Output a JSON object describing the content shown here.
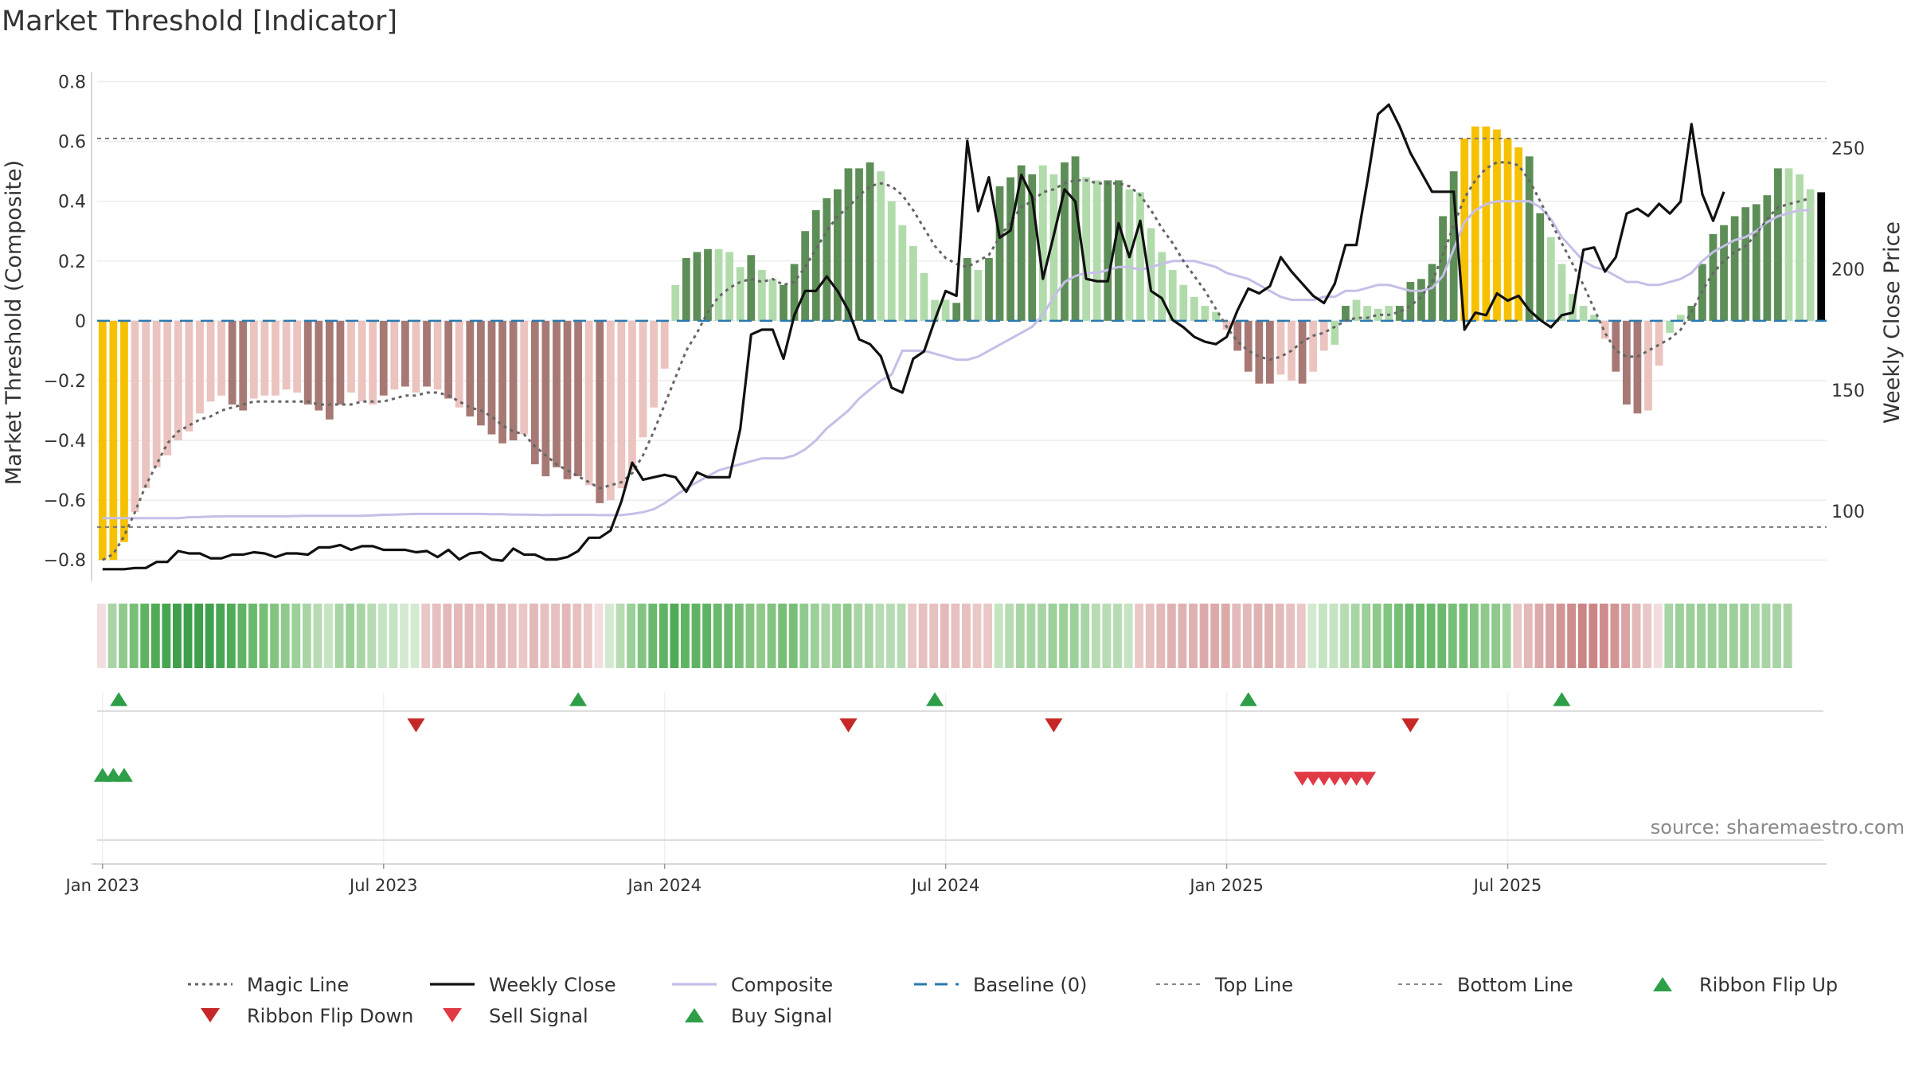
{
  "chart_data": {
    "type": "bar",
    "title": "Market Threshold [Indicator]",
    "ylabel": "Market Threshold (Composite)",
    "y2label": "Weekly Close Price",
    "ylim": [
      -0.85,
      0.82
    ],
    "y2lim": [
      70,
      280
    ],
    "yticks": [
      {
        "v": 0.8,
        "label": "0.8"
      },
      {
        "v": 0.6,
        "label": "0.6"
      },
      {
        "v": 0.4,
        "label": "0.4"
      },
      {
        "v": 0.2,
        "label": "0.2"
      },
      {
        "v": 0,
        "label": "0"
      },
      {
        "v": -0.2,
        "label": "−0.2"
      },
      {
        "v": -0.4,
        "label": "−0.4"
      },
      {
        "v": -0.6,
        "label": "−0.6"
      },
      {
        "v": -0.8,
        "label": "−0.8"
      }
    ],
    "y2ticks": [
      {
        "v": 250,
        "label": "250"
      },
      {
        "v": 200,
        "label": "200"
      },
      {
        "v": 150,
        "label": "150"
      },
      {
        "v": 100,
        "label": "100"
      }
    ],
    "xticks": [
      {
        "week": 1,
        "label": "Jan 2023"
      },
      {
        "week": 27,
        "label": "Jul 2023"
      },
      {
        "week": 53,
        "label": "Jan 2024"
      },
      {
        "week": 79,
        "label": "Jul 2024"
      },
      {
        "week": 105,
        "label": "Jan 2025"
      },
      {
        "week": 131,
        "label": "Jul 2025"
      }
    ],
    "top_line": 0.61,
    "bottom_line": -0.69,
    "baseline": 0,
    "composite_bars": [
      -0.8,
      -0.8,
      -0.74,
      -0.64,
      -0.56,
      -0.49,
      -0.45,
      -0.4,
      -0.37,
      -0.31,
      -0.27,
      -0.25,
      -0.28,
      -0.3,
      -0.26,
      -0.25,
      -0.25,
      -0.23,
      -0.24,
      -0.28,
      -0.3,
      -0.33,
      -0.28,
      -0.24,
      -0.27,
      -0.28,
      -0.25,
      -0.23,
      -0.22,
      -0.24,
      -0.22,
      -0.23,
      -0.26,
      -0.29,
      -0.32,
      -0.35,
      -0.38,
      -0.41,
      -0.4,
      -0.38,
      -0.48,
      -0.52,
      -0.49,
      -0.53,
      -0.52,
      -0.55,
      -0.61,
      -0.6,
      -0.56,
      -0.5,
      -0.39,
      -0.29,
      -0.16,
      0.12,
      0.21,
      0.23,
      0.24,
      0.24,
      0.23,
      0.18,
      0.22,
      0.17,
      0.14,
      0.12,
      0.19,
      0.3,
      0.37,
      0.41,
      0.44,
      0.51,
      0.51,
      0.53,
      0.5,
      0.4,
      0.32,
      0.25,
      0.16,
      0.07,
      0.07,
      0.06,
      0.21,
      0.17,
      0.21,
      0.45,
      0.48,
      0.52,
      0.49,
      0.52,
      0.49,
      0.53,
      0.55,
      0.48,
      0.47,
      0.47,
      0.47,
      0.44,
      0.43,
      0.31,
      0.23,
      0.17,
      0.12,
      0.08,
      0.05,
      0.03,
      -0.03,
      -0.1,
      -0.17,
      -0.21,
      -0.21,
      -0.18,
      -0.2,
      -0.21,
      -0.17,
      -0.1,
      -0.08,
      0.05,
      0.07,
      0.05,
      0.04,
      0.05,
      0.05,
      0.13,
      0.14,
      0.19,
      0.35,
      0.5,
      0.61,
      0.65,
      0.65,
      0.64,
      0.61,
      0.58,
      0.55,
      0.36,
      0.28,
      0.19,
      0.09,
      0.05,
      0.02,
      -0.06,
      -0.17,
      -0.28,
      -0.31,
      -0.3,
      -0.15,
      -0.04,
      0.02,
      0.05,
      0.19,
      0.29,
      0.32,
      0.35,
      0.38,
      0.39,
      0.42,
      0.51,
      0.51,
      0.49,
      0.44,
      0.43
    ],
    "bar_colors": [
      "#f5c100",
      "#f5c100",
      "#f5c100",
      "#ebc3bf",
      "#ebc3bf",
      "#ebc3bf",
      "#ebc3bf",
      "#ebc3bf",
      "#ebc3bf",
      "#ebc3bf",
      "#ebc3bf",
      "#ebc3bf",
      "#a77975",
      "#a77975",
      "#ebc3bf",
      "#ebc3bf",
      "#ebc3bf",
      "#ebc3bf",
      "#ebc3bf",
      "#a77975",
      "#a77975",
      "#a77975",
      "#a77975",
      "#ebc3bf",
      "#ebc3bf",
      "#ebc3bf",
      "#a77975",
      "#ebc3bf",
      "#a77975",
      "#ebc3bf",
      "#a77975",
      "#ebc3bf",
      "#a77975",
      "#ebc3bf",
      "#a77975",
      "#a77975",
      "#a77975",
      "#a77975",
      "#a77975",
      "#ebc3bf",
      "#a77975",
      "#a77975",
      "#a77975",
      "#a77975",
      "#a77975",
      "#ebc3bf",
      "#a77975",
      "#ebc3bf",
      "#ebc3bf",
      "#ebc3bf",
      "#ebc3bf",
      "#ebc3bf",
      "#ebc3bf",
      "#b2dbac",
      "#5e8e57",
      "#5e8e57",
      "#5e8e57",
      "#b2dbac",
      "#b2dbac",
      "#b2dbac",
      "#5e8e57",
      "#b2dbac",
      "#b2dbac",
      "#5e8e57",
      "#5e8e57",
      "#5e8e57",
      "#5e8e57",
      "#5e8e57",
      "#5e8e57",
      "#5e8e57",
      "#5e8e57",
      "#5e8e57",
      "#b2dbac",
      "#b2dbac",
      "#b2dbac",
      "#b2dbac",
      "#b2dbac",
      "#b2dbac",
      "#b2dbac",
      "#5e8e57",
      "#5e8e57",
      "#b2dbac",
      "#5e8e57",
      "#5e8e57",
      "#5e8e57",
      "#5e8e57",
      "#5e8e57",
      "#b2dbac",
      "#b2dbac",
      "#5e8e57",
      "#5e8e57",
      "#b2dbac",
      "#b2dbac",
      "#5e8e57",
      "#5e8e57",
      "#b2dbac",
      "#b2dbac",
      "#b2dbac",
      "#b2dbac",
      "#b2dbac",
      "#b2dbac",
      "#b2dbac",
      "#b2dbac",
      "#b2dbac",
      "#ebc3bf",
      "#a77975",
      "#a77975",
      "#a77975",
      "#a77975",
      "#ebc3bf",
      "#ebc3bf",
      "#a77975",
      "#ebc3bf",
      "#ebc3bf",
      "#b2dbac",
      "#5e8e57",
      "#b2dbac",
      "#b2dbac",
      "#b2dbac",
      "#b2dbac",
      "#5e8e57",
      "#5e8e57",
      "#5e8e57",
      "#5e8e57",
      "#5e8e57",
      "#5e8e57",
      "#f5c100",
      "#f5c100",
      "#f5c100",
      "#f5c100",
      "#f5c100",
      "#f5c100",
      "#5e8e57",
      "#5e8e57",
      "#b2dbac",
      "#b2dbac",
      "#b2dbac",
      "#b2dbac",
      "#b2dbac",
      "#ebc3bf",
      "#a77975",
      "#a77975",
      "#a77975",
      "#ebc3bf",
      "#ebc3bf",
      "#b2dbac",
      "#b2dbac",
      "#5e8e57",
      "#5e8e57",
      "#5e8e57",
      "#5e8e57",
      "#5e8e57",
      "#5e8e57",
      "#5e8e57",
      "#5e8e57",
      "#5e8e57",
      "#b2dbac",
      "#b2dbac",
      "#b2dbac"
    ],
    "magic_line": [
      -0.8,
      -0.78,
      -0.72,
      -0.64,
      -0.55,
      -0.48,
      -0.41,
      -0.37,
      -0.35,
      -0.33,
      -0.32,
      -0.3,
      -0.29,
      -0.28,
      -0.27,
      -0.27,
      -0.27,
      -0.27,
      -0.27,
      -0.27,
      -0.28,
      -0.28,
      -0.28,
      -0.28,
      -0.27,
      -0.27,
      -0.27,
      -0.26,
      -0.25,
      -0.25,
      -0.24,
      -0.24,
      -0.25,
      -0.27,
      -0.29,
      -0.3,
      -0.32,
      -0.35,
      -0.37,
      -0.38,
      -0.42,
      -0.45,
      -0.48,
      -0.5,
      -0.52,
      -0.54,
      -0.56,
      -0.55,
      -0.54,
      -0.51,
      -0.45,
      -0.37,
      -0.28,
      -0.19,
      -0.1,
      -0.04,
      0.03,
      0.08,
      0.11,
      0.13,
      0.14,
      0.13,
      0.14,
      0.12,
      0.13,
      0.18,
      0.24,
      0.3,
      0.35,
      0.38,
      0.42,
      0.45,
      0.46,
      0.45,
      0.42,
      0.37,
      0.31,
      0.25,
      0.21,
      0.19,
      0.18,
      0.2,
      0.22,
      0.28,
      0.33,
      0.38,
      0.4,
      0.43,
      0.44,
      0.46,
      0.47,
      0.47,
      0.46,
      0.46,
      0.46,
      0.45,
      0.42,
      0.37,
      0.31,
      0.26,
      0.2,
      0.15,
      0.1,
      0.04,
      -0.02,
      -0.07,
      -0.1,
      -0.12,
      -0.13,
      -0.12,
      -0.1,
      -0.07,
      -0.05,
      -0.04,
      -0.02,
      0.0,
      0.01,
      0.01,
      0.02,
      0.02,
      0.03,
      0.05,
      0.08,
      0.13,
      0.22,
      0.32,
      0.41,
      0.47,
      0.51,
      0.53,
      0.53,
      0.52,
      0.47,
      0.4,
      0.33,
      0.26,
      0.19,
      0.12,
      0.04,
      -0.04,
      -0.1,
      -0.12,
      -0.12,
      -0.1,
      -0.08,
      -0.06,
      -0.03,
      0.03,
      0.1,
      0.16,
      0.2,
      0.23,
      0.25,
      0.29,
      0.34,
      0.38,
      0.39,
      0.4,
      0.41
    ],
    "composite_line": [
      -0.66,
      -0.66,
      -0.66,
      -0.66,
      -0.66,
      -0.66,
      -0.66,
      -0.66,
      -0.657,
      -0.656,
      -0.655,
      -0.654,
      -0.654,
      -0.654,
      -0.654,
      -0.654,
      -0.654,
      -0.654,
      -0.653,
      -0.652,
      -0.652,
      -0.652,
      -0.652,
      -0.652,
      -0.652,
      -0.651,
      -0.649,
      -0.648,
      -0.647,
      -0.646,
      -0.646,
      -0.646,
      -0.646,
      -0.646,
      -0.646,
      -0.646,
      -0.647,
      -0.647,
      -0.648,
      -0.648,
      -0.649,
      -0.65,
      -0.649,
      -0.649,
      -0.649,
      -0.649,
      -0.65,
      -0.65,
      -0.65,
      -0.646,
      -0.64,
      -0.63,
      -0.61,
      -0.585,
      -0.56,
      -0.54,
      -0.52,
      -0.5,
      -0.49,
      -0.48,
      -0.47,
      -0.46,
      -0.46,
      -0.46,
      -0.45,
      -0.43,
      -0.4,
      -0.36,
      -0.33,
      -0.3,
      -0.26,
      -0.23,
      -0.2,
      -0.18,
      -0.1,
      -0.1,
      -0.1,
      -0.11,
      -0.12,
      -0.13,
      -0.13,
      -0.12,
      -0.1,
      -0.08,
      -0.06,
      -0.04,
      -0.02,
      0.02,
      0.08,
      0.13,
      0.15,
      0.16,
      0.16,
      0.17,
      0.18,
      0.18,
      0.17,
      0.18,
      0.19,
      0.2,
      0.2,
      0.2,
      0.19,
      0.18,
      0.16,
      0.15,
      0.14,
      0.12,
      0.1,
      0.08,
      0.07,
      0.07,
      0.07,
      0.08,
      0.08,
      0.1,
      0.1,
      0.11,
      0.12,
      0.12,
      0.11,
      0.1,
      0.1,
      0.11,
      0.15,
      0.24,
      0.33,
      0.37,
      0.39,
      0.4,
      0.4,
      0.4,
      0.4,
      0.38,
      0.34,
      0.28,
      0.24,
      0.2,
      0.18,
      0.17,
      0.15,
      0.13,
      0.13,
      0.12,
      0.12,
      0.13,
      0.14,
      0.16,
      0.2,
      0.23,
      0.25,
      0.27,
      0.28,
      0.3,
      0.33,
      0.35,
      0.36,
      0.37,
      0.37
    ],
    "weekly_close": [
      76,
      76,
      76,
      76.5,
      76.5,
      79,
      79,
      83.5,
      82.5,
      82.5,
      80.5,
      80.5,
      82,
      82,
      83,
      82.5,
      81,
      82.5,
      82.5,
      82,
      85,
      85,
      86,
      84,
      85.5,
      85.5,
      84,
      84,
      84,
      83,
      83.5,
      81,
      84,
      80,
      82.5,
      83,
      80,
      79.5,
      84.5,
      82,
      82,
      80,
      80,
      81,
      83.5,
      89,
      89,
      92,
      104,
      120,
      113,
      114,
      115,
      114,
      108,
      116,
      114,
      114,
      114,
      134,
      173,
      175,
      175,
      163,
      181,
      191,
      191,
      197,
      191,
      183,
      171,
      169,
      164,
      151,
      149,
      163,
      166,
      179,
      191,
      189,
      253,
      224,
      238,
      213,
      216,
      239,
      230,
      196,
      214,
      233,
      228,
      196,
      195,
      195,
      219,
      205,
      220,
      191,
      188,
      179,
      176,
      172,
      170,
      169,
      172,
      183,
      192,
      190,
      193,
      205,
      199,
      194,
      189,
      186,
      194,
      210,
      210,
      236,
      264,
      268,
      259,
      248,
      240,
      232,
      232,
      232,
      175,
      182,
      181,
      190,
      187,
      189,
      183,
      179,
      176,
      181,
      182,
      208,
      209,
      199,
      205,
      223,
      225,
      222,
      227,
      223,
      228,
      260,
      231,
      220,
      232
    ],
    "ribbon_colors": [
      "#f2dede",
      "#a9d5a6",
      "#8fca8c",
      "#77bf76",
      "#5fb463",
      "#50ab57",
      "#48a652",
      "#3fa04c",
      "#3fa04c",
      "#3fa04c",
      "#3fa04c",
      "#48a652",
      "#50ab57",
      "#5fb463",
      "#6bb96c",
      "#77bf76",
      "#83c580",
      "#8fca8c",
      "#9bd099",
      "#a9d5a6",
      "#b7dcb3",
      "#c5e4c2",
      "#a9d5a6",
      "#9bd099",
      "#a9d5a6",
      "#b7dcb3",
      "#c5e4c2",
      "#c5e4c2",
      "#d3ead1",
      "#d3ead1",
      "#eac8c8",
      "#e7c0c0",
      "#e3b9b9",
      "#e3b9b9",
      "#e3b9b9",
      "#e7c0c0",
      "#e3b9b9",
      "#e3b9b9",
      "#e7c0c0",
      "#eac8c8",
      "#e3b9b9",
      "#e7c0c0",
      "#e7c0c0",
      "#e3b9b9",
      "#e7c0c0",
      "#eac8c8",
      "#f2dede",
      "#d3ead1",
      "#b7dcb3",
      "#9bd099",
      "#83c580",
      "#6bb96c",
      "#5fb463",
      "#50ab57",
      "#5fb463",
      "#5fb463",
      "#5fb463",
      "#6bb96c",
      "#6bb96c",
      "#77bf76",
      "#83c580",
      "#8fca8c",
      "#83c580",
      "#77bf76",
      "#77bf76",
      "#8fca8c",
      "#9bd099",
      "#a9d5a6",
      "#9bd099",
      "#8fca8c",
      "#a9d5a6",
      "#a9d5a6",
      "#b7dcb3",
      "#b7dcb3",
      "#b7dcb3",
      "#eac8c8",
      "#e7c0c0",
      "#e7c0c0",
      "#e3b9b9",
      "#e7c0c0",
      "#e7c0c0",
      "#eac8c8",
      "#eac8c8",
      "#c5e4c2",
      "#b7dcb3",
      "#a9d5a6",
      "#a9d5a6",
      "#a9d5a6",
      "#9bd099",
      "#9bd099",
      "#9bd099",
      "#a9d5a6",
      "#b7dcb3",
      "#b7dcb3",
      "#b7dcb3",
      "#c5e4c2",
      "#eac8c8",
      "#e7c0c0",
      "#e3b9b9",
      "#dfb2b2",
      "#dfb2b2",
      "#dfb2b2",
      "#dcaaaa",
      "#dcaaaa",
      "#dcaaaa",
      "#e3b9b9",
      "#e3b9b9",
      "#dfb2b2",
      "#dfb2b2",
      "#e3b9b9",
      "#e7c0c0",
      "#eac8c8",
      "#d3ead1",
      "#c5e4c2",
      "#c5e4c2",
      "#b7dcb3",
      "#a9d5a6",
      "#9bd099",
      "#8fca8c",
      "#83c580",
      "#77bf76",
      "#6bb96c",
      "#6bb96c",
      "#6bb96c",
      "#6bb96c",
      "#77bf76",
      "#77bf76",
      "#83c580",
      "#8fca8c",
      "#8fca8c",
      "#9bd099",
      "#eac8c8",
      "#e3b9b9",
      "#dcaaaa",
      "#d9a3a3",
      "#d39494",
      "#cf8c8c",
      "#cc8585",
      "#cc8585",
      "#cf8c8c",
      "#d39494",
      "#d9a3a3",
      "#e3b9b9",
      "#eac8c8",
      "#f2dede",
      "#a9d5a6",
      "#9bd099",
      "#9bd099",
      "#9bd099",
      "#9bd099",
      "#9bd099",
      "#9bd099",
      "#9bd099",
      "#a9d5a6",
      "#a9d5a6",
      "#a9d5a6",
      "#a9d5a6"
    ],
    "buy_signals": [
      1.5,
      44,
      77,
      106,
      135
    ],
    "sell_signals": [
      29,
      69,
      88,
      121
    ],
    "ribbon_flip_up": [
      0,
      1,
      2
    ],
    "ribbon_flip_down": [
      111,
      112,
      113,
      114,
      115,
      116,
      117
    ],
    "legend": {
      "magic_line": "Magic Line",
      "weekly_close": "Weekly Close",
      "composite": "Composite",
      "baseline": "Baseline (0)",
      "top_line": "Top Line",
      "bottom_line": "Bottom Line",
      "ribbon_flip_up": "Ribbon Flip Up",
      "ribbon_flip_down": "Ribbon Flip Down",
      "sell_signal": "Sell Signal",
      "buy_signal": "Buy Signal"
    },
    "legend_position": "bottom",
    "grid": true
  },
  "source": "source: sharemaestro.com",
  "colors": {
    "top_ribbon": "#f5c100",
    "strong_up": "#5e8e57",
    "weak_up": "#b2dbac",
    "strong_down": "#a77975",
    "weak_down": "#ebc3bf",
    "weekly_close": "#111111",
    "composite": "#c5bfe8",
    "magic_line": "#666666",
    "baseline": "#2a7ab0",
    "buy": "#2e9e48",
    "sell": "#e03a45",
    "flip_down": "#c62828"
  }
}
